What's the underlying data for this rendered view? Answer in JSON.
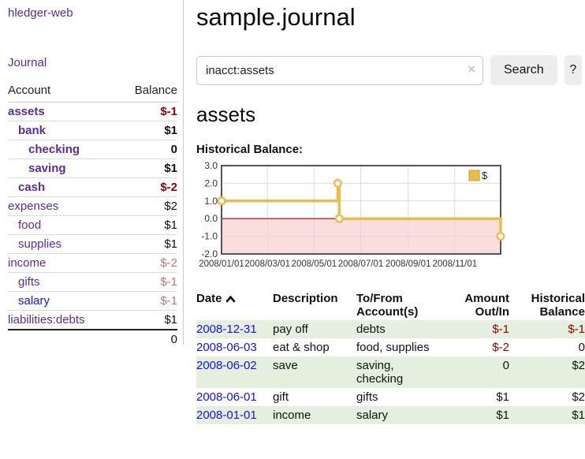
{
  "colors": {
    "link_purple": "#5c2d91",
    "link_blue": "#1212dd",
    "negative_strong": "#8b0000",
    "negative_dim": "#bb7878",
    "row_stripe_green": "#e4efdf",
    "chart_line_gold": "#e8bd4d",
    "chart_negative_fill": "#fcdddd",
    "chart_zero_line": "#9c0000",
    "button_bg": "#ededed",
    "border_gray": "#cccccc"
  },
  "app": {
    "title": "hledger-web"
  },
  "sidebar": {
    "journal_link": "Journal",
    "accounts": {
      "col_account": "Account",
      "col_balance": "Balance",
      "rows": [
        {
          "name": "assets",
          "balance": "$-1",
          "indent": 1,
          "bold": true,
          "neg": "strong",
          "link": "purple"
        },
        {
          "name": "bank",
          "balance": "$1",
          "indent": 2,
          "bold": true,
          "neg": "none",
          "link": "purple"
        },
        {
          "name": "checking",
          "balance": "0",
          "indent": 3,
          "bold": true,
          "neg": "none",
          "link": "purple"
        },
        {
          "name": "saving",
          "balance": "$1",
          "indent": 3,
          "bold": true,
          "neg": "none",
          "link": "purple"
        },
        {
          "name": "cash",
          "balance": "$-2",
          "indent": 2,
          "bold": true,
          "neg": "strong",
          "link": "purple"
        },
        {
          "name": "expenses",
          "balance": "$2",
          "indent": 1,
          "bold": false,
          "neg": "none",
          "link": "purple"
        },
        {
          "name": "food",
          "balance": "$1",
          "indent": 2,
          "bold": false,
          "neg": "none",
          "link": "purple"
        },
        {
          "name": "supplies",
          "balance": "$1",
          "indent": 2,
          "bold": false,
          "neg": "none",
          "link": "purple"
        },
        {
          "name": "income",
          "balance": "$-2",
          "indent": 1,
          "bold": false,
          "neg": "dim",
          "link": "purple"
        },
        {
          "name": "gifts",
          "balance": "$-1",
          "indent": 2,
          "bold": false,
          "neg": "dim",
          "link": "purple"
        },
        {
          "name": "salary",
          "balance": "$-1",
          "indent": 2,
          "bold": false,
          "neg": "dim",
          "link": "blue"
        },
        {
          "name": "liabilities:debts",
          "balance": "$1",
          "indent": 1,
          "bold": false,
          "neg": "none",
          "link": "purple"
        }
      ],
      "total": "0"
    }
  },
  "main": {
    "title": "sample.journal",
    "search": {
      "value": "inacct:assets",
      "clear_icon": "×",
      "button_label": "Search",
      "help_label": "?"
    },
    "account_heading": "assets",
    "chart_title": "Historical Balance:"
  },
  "chart_data": {
    "type": "line",
    "title": "Historical Balance",
    "x_type": "date",
    "x_range": [
      "2008-01-01",
      "2008-12-31"
    ],
    "ylim": [
      -2,
      3
    ],
    "yticks": [
      "3.0",
      "2.0",
      "1.0",
      "0.0",
      "-1.0",
      "-2.0"
    ],
    "xticks": [
      {
        "date": "2008-01-01",
        "label": "2008/01/01"
      },
      {
        "date": "2008-03-01",
        "label": "2008/03/01"
      },
      {
        "date": "2008-05-01",
        "label": "2008/05/01"
      },
      {
        "date": "2008-07-01",
        "label": "2008/07/01"
      },
      {
        "date": "2008-09-01",
        "label": "2008/09/01"
      },
      {
        "date": "2008-11-01",
        "label": "2008/11/01"
      }
    ],
    "series": [
      {
        "name": "$",
        "style": "step-after",
        "points": [
          {
            "date": "2008-01-01",
            "value": 1
          },
          {
            "date": "2008-06-01",
            "value": 2
          },
          {
            "date": "2008-06-03",
            "value": 0
          },
          {
            "date": "2008-12-31",
            "value": -1
          }
        ]
      }
    ],
    "legend": {
      "position": "top-right",
      "entries": [
        {
          "label": "$",
          "color": "#e8bd4d"
        }
      ]
    },
    "grid": true,
    "negative_region_shaded": true
  },
  "register": {
    "headers": {
      "date": "Date",
      "description": "Description",
      "accounts": "To/From Account(s)",
      "amount": "Amount Out/In",
      "balance": "Historical Balance"
    },
    "sort": {
      "column": "date",
      "direction": "asc"
    },
    "rows": [
      {
        "date": "2008-12-31",
        "description": "pay off",
        "accounts": "debts",
        "amount": "$-1",
        "amount_neg": true,
        "balance": "$-1",
        "balance_neg": true
      },
      {
        "date": "2008-06-03",
        "description": "eat & shop",
        "accounts": "food, supplies",
        "amount": "$-2",
        "amount_neg": true,
        "balance": "0",
        "balance_neg": false
      },
      {
        "date": "2008-06-02",
        "description": "save",
        "accounts": "saving, checking",
        "amount": "0",
        "amount_neg": false,
        "balance": "$2",
        "balance_neg": false
      },
      {
        "date": "2008-06-01",
        "description": "gift",
        "accounts": "gifts",
        "amount": "$1",
        "amount_neg": false,
        "balance": "$2",
        "balance_neg": false
      },
      {
        "date": "2008-01-01",
        "description": "income",
        "accounts": "salary",
        "amount": "$1",
        "amount_neg": false,
        "balance": "$1",
        "balance_neg": false
      }
    ]
  }
}
